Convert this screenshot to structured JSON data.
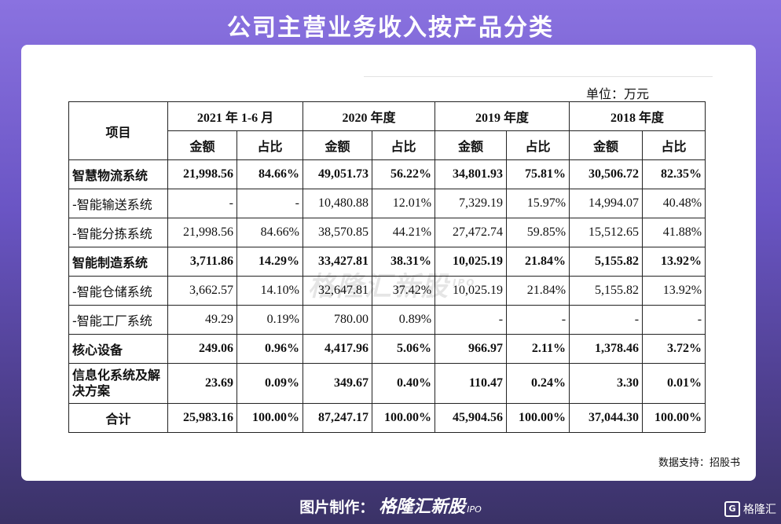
{
  "title": "公司主营业务收入按产品分类",
  "unit": "单位：万元",
  "header": {
    "item": "项目",
    "periods": [
      "2021 年 1-6 月",
      "2020 年度",
      "2019 年度",
      "2018 年度"
    ],
    "amount": "金额",
    "ratio": "占比"
  },
  "rows": [
    {
      "label": "智慧物流系统",
      "bold": true,
      "cells": [
        "21,998.56",
        "84.66%",
        "49,051.73",
        "56.22%",
        "34,801.93",
        "75.81%",
        "30,506.72",
        "82.35%"
      ]
    },
    {
      "label": "-智能输送系统",
      "bold": false,
      "cells": [
        "-",
        "-",
        "10,480.88",
        "12.01%",
        "7,329.19",
        "15.97%",
        "14,994.07",
        "40.48%"
      ]
    },
    {
      "label": "-智能分拣系统",
      "bold": false,
      "cells": [
        "21,998.56",
        "84.66%",
        "38,570.85",
        "44.21%",
        "27,472.74",
        "59.85%",
        "15,512.65",
        "41.88%"
      ]
    },
    {
      "label": "智能制造系统",
      "bold": true,
      "cells": [
        "3,711.86",
        "14.29%",
        "33,427.81",
        "38.31%",
        "10,025.19",
        "21.84%",
        "5,155.82",
        "13.92%"
      ]
    },
    {
      "label": "-智能仓储系统",
      "bold": false,
      "cells": [
        "3,662.57",
        "14.10%",
        "32,647.81",
        "37.42%",
        "10,025.19",
        "21.84%",
        "5,155.82",
        "13.92%"
      ]
    },
    {
      "label": "-智能工厂系统",
      "bold": false,
      "cells": [
        "49.29",
        "0.19%",
        "780.00",
        "0.89%",
        "-",
        "-",
        "-",
        "-"
      ]
    },
    {
      "label": "核心设备",
      "bold": true,
      "cells": [
        "249.06",
        "0.96%",
        "4,417.96",
        "5.06%",
        "966.97",
        "2.11%",
        "1,378.46",
        "3.72%"
      ]
    },
    {
      "label": "信息化系统及解决方案",
      "bold": true,
      "wrap": true,
      "cells": [
        "23.69",
        "0.09%",
        "349.67",
        "0.40%",
        "110.47",
        "0.24%",
        "3.30",
        "0.01%"
      ]
    }
  ],
  "total": {
    "label": "合计",
    "cells": [
      "25,983.16",
      "100.00%",
      "87,247.17",
      "100.00%",
      "45,904.56",
      "100.00%",
      "37,044.30",
      "100.00%"
    ]
  },
  "source": "数据支持：招股书",
  "watermark": {
    "brand": "格隆汇新股",
    "tag": "IPO"
  },
  "footer": {
    "prefix": "图片制作：",
    "brand": "格隆汇新股",
    "tag": "IPO"
  },
  "badge": {
    "icon": "G",
    "text": "格隆汇"
  }
}
